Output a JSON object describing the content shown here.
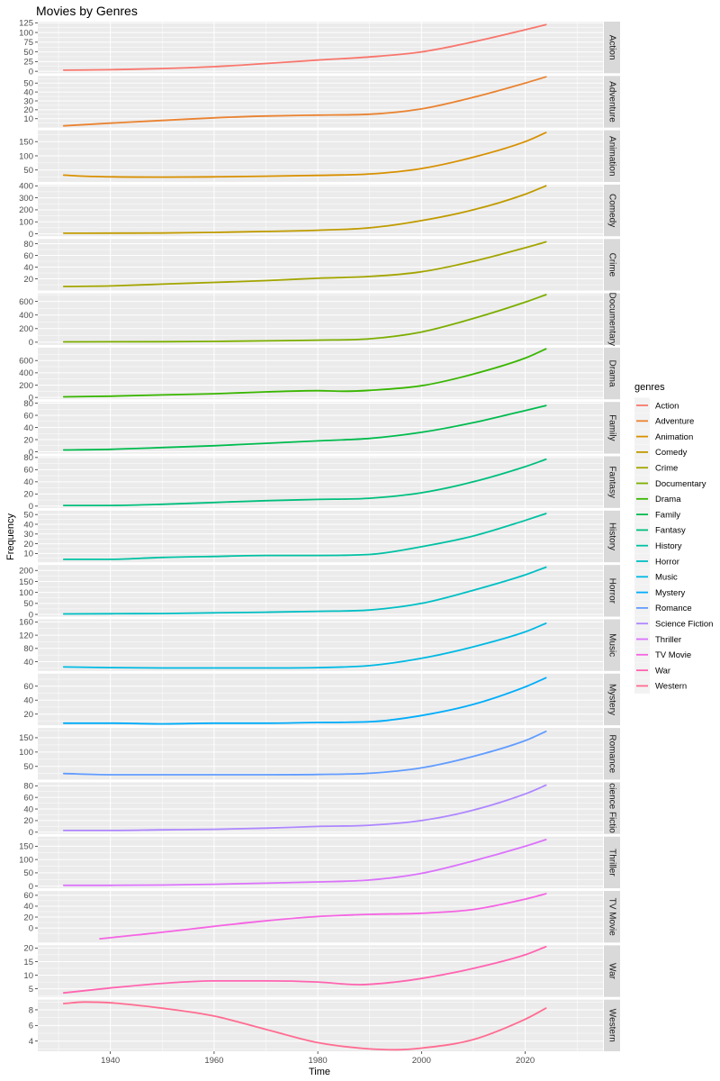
{
  "chart_data": {
    "type": "line",
    "title": "Movies by Genres",
    "xlabel": "Time",
    "ylabel": "Frequency",
    "legend_title": "genres",
    "legend_position": "right",
    "grid": true,
    "xlim": [
      1926,
      2035
    ],
    "x_ticks": [
      1940,
      1960,
      1980,
      2000,
      2020
    ],
    "facets": [
      {
        "name": "Action",
        "strip_label": "Action",
        "color": "#F8766D",
        "ylim": [
          -5,
          128
        ],
        "y_ticks": [
          0,
          25,
          50,
          75,
          100,
          125
        ],
        "x": [
          1931,
          1940,
          1950,
          1960,
          1970,
          1980,
          1990,
          2000,
          2010,
          2020,
          2024
        ],
        "y": [
          3,
          4,
          7,
          12,
          20,
          29,
          37,
          50,
          76,
          107,
          120
        ]
      },
      {
        "name": "Adventure",
        "strip_label": "Adventure",
        "color": "#EA8331",
        "ylim": [
          0,
          58
        ],
        "y_ticks": [
          10,
          20,
          30,
          40,
          50
        ],
        "x": [
          1931,
          1940,
          1950,
          1960,
          1970,
          1980,
          1990,
          2000,
          2010,
          2020,
          2024
        ],
        "y": [
          2,
          5,
          8,
          11,
          13,
          14,
          15,
          21,
          34,
          50,
          57
        ]
      },
      {
        "name": "Animation",
        "strip_label": "Animation",
        "color": "#D89000",
        "ylim": [
          8,
          190
        ],
        "y_ticks": [
          50,
          100,
          150
        ],
        "x": [
          1931,
          1935,
          1950,
          1960,
          1970,
          1980,
          1990,
          2000,
          2010,
          2020,
          2024
        ],
        "y": [
          32,
          28,
          25,
          26,
          28,
          31,
          36,
          55,
          95,
          150,
          182
        ]
      },
      {
        "name": "Comedy",
        "strip_label": "Comedy",
        "color": "#C09B00",
        "ylim": [
          -20,
          410
        ],
        "y_ticks": [
          0,
          100,
          200,
          300,
          400
        ],
        "x": [
          1931,
          1940,
          1950,
          1960,
          1970,
          1980,
          1990,
          2000,
          2010,
          2020,
          2024
        ],
        "y": [
          5,
          6,
          7,
          12,
          20,
          30,
          50,
          110,
          200,
          330,
          400
        ]
      },
      {
        "name": "Crime",
        "strip_label": "Crime",
        "color": "#A3A500",
        "ylim": [
          0,
          88
        ],
        "y_ticks": [
          20,
          40,
          60,
          80
        ],
        "x": [
          1931,
          1940,
          1950,
          1960,
          1970,
          1980,
          1990,
          2000,
          2010,
          2020,
          2024
        ],
        "y": [
          7,
          8,
          11,
          14,
          17,
          21,
          24,
          32,
          50,
          73,
          83
        ]
      },
      {
        "name": "Documentary",
        "strip_label": "Documentary",
        "color": "#7CAE00",
        "ylim": [
          -40,
          720
        ],
        "y_ticks": [
          0,
          200,
          400,
          600
        ],
        "x": [
          1931,
          1940,
          1950,
          1960,
          1970,
          1980,
          1990,
          2000,
          2010,
          2020,
          2024
        ],
        "y": [
          5,
          6,
          8,
          12,
          20,
          30,
          50,
          150,
          350,
          590,
          700
        ]
      },
      {
        "name": "Drama",
        "strip_label": "Drama",
        "color": "#39B600",
        "ylim": [
          -30,
          810
        ],
        "y_ticks": [
          0,
          200,
          400,
          600
        ],
        "x": [
          1931,
          1940,
          1950,
          1960,
          1970,
          1980,
          1985,
          1990,
          2000,
          2010,
          2020,
          2024
        ],
        "y": [
          10,
          20,
          40,
          60,
          90,
          110,
          100,
          115,
          190,
          380,
          640,
          790
        ]
      },
      {
        "name": "Family",
        "strip_label": "Family",
        "color": "#00BB4E",
        "ylim": [
          -3,
          82
        ],
        "y_ticks": [
          0,
          20,
          40,
          60,
          80
        ],
        "x": [
          1931,
          1940,
          1950,
          1960,
          1970,
          1980,
          1990,
          2000,
          2010,
          2020,
          2024
        ],
        "y": [
          3,
          4,
          7,
          10,
          14,
          18,
          22,
          32,
          48,
          68,
          76
        ]
      },
      {
        "name": "Fantasy",
        "strip_label": "Fantasy",
        "color": "#00BF7D",
        "ylim": [
          -3,
          82
        ],
        "y_ticks": [
          0,
          20,
          40,
          60,
          80
        ],
        "x": [
          1931,
          1940,
          1950,
          1960,
          1970,
          1980,
          1990,
          2000,
          2010,
          2020,
          2024
        ],
        "y": [
          1,
          1,
          3,
          6,
          9,
          11,
          13,
          22,
          40,
          65,
          77
        ]
      },
      {
        "name": "History",
        "strip_label": "History",
        "color": "#00C1A3",
        "ylim": [
          1,
          54
        ],
        "y_ticks": [
          10,
          20,
          30,
          40,
          50
        ],
        "x": [
          1931,
          1940,
          1950,
          1960,
          1970,
          1980,
          1990,
          2000,
          2010,
          2020,
          2024
        ],
        "y": [
          4,
          4,
          6,
          7,
          8,
          8,
          9,
          17,
          28,
          44,
          51
        ]
      },
      {
        "name": "Horror",
        "strip_label": "Horror",
        "color": "#00BFC4",
        "ylim": [
          -10,
          225
        ],
        "y_ticks": [
          0,
          50,
          100,
          150,
          200
        ],
        "x": [
          1931,
          1940,
          1950,
          1960,
          1970,
          1980,
          1990,
          2000,
          2010,
          2020,
          2024
        ],
        "y": [
          2,
          3,
          4,
          7,
          10,
          14,
          20,
          50,
          110,
          180,
          215
        ]
      },
      {
        "name": "Music",
        "strip_label": "Music",
        "color": "#00B9E3",
        "ylim": [
          12,
          168
        ],
        "y_ticks": [
          40,
          80,
          120,
          160
        ],
        "x": [
          1931,
          1940,
          1950,
          1960,
          1970,
          1980,
          1990,
          2000,
          2010,
          2020,
          2024
        ],
        "y": [
          24,
          22,
          21,
          21,
          21,
          22,
          28,
          50,
          85,
          130,
          156
        ]
      },
      {
        "name": "Mystery",
        "strip_label": "Mystery",
        "color": "#00ADFA",
        "ylim": [
          4,
          78
        ],
        "y_ticks": [
          20,
          40,
          60
        ],
        "x": [
          1931,
          1940,
          1950,
          1960,
          1970,
          1980,
          1990,
          2000,
          2010,
          2020,
          2024
        ],
        "y": [
          7,
          7,
          6,
          7,
          7,
          8,
          9,
          18,
          34,
          59,
          72
        ]
      },
      {
        "name": "Romance",
        "strip_label": "Romance",
        "color": "#619CFF",
        "ylim": [
          4,
          184
        ],
        "y_ticks": [
          50,
          100,
          150
        ],
        "x": [
          1931,
          1940,
          1950,
          1960,
          1970,
          1980,
          1990,
          2000,
          2010,
          2020,
          2024
        ],
        "y": [
          25,
          21,
          21,
          21,
          21,
          22,
          26,
          45,
          85,
          140,
          172
        ]
      },
      {
        "name": "Science Fiction",
        "strip_label": "cience Fictio",
        "color": "#AE87FF",
        "ylim": [
          -3,
          86
        ],
        "y_ticks": [
          0,
          20,
          40,
          60,
          80
        ],
        "x": [
          1931,
          1940,
          1950,
          1960,
          1970,
          1980,
          1990,
          2000,
          2010,
          2020,
          2024
        ],
        "y": [
          3,
          3,
          4,
          5,
          7,
          10,
          12,
          20,
          38,
          66,
          81
        ]
      },
      {
        "name": "Thriller",
        "strip_label": "Thriller",
        "color": "#DB72FB",
        "ylim": [
          -8,
          186
        ],
        "y_ticks": [
          0,
          50,
          100,
          150
        ],
        "x": [
          1931,
          1940,
          1950,
          1960,
          1970,
          1980,
          1990,
          2000,
          2010,
          2020,
          2024
        ],
        "y": [
          3,
          3,
          4,
          7,
          11,
          16,
          23,
          48,
          95,
          150,
          175
        ]
      },
      {
        "name": "TV Movie",
        "strip_label": "TV Movie",
        "color": "#F564E3",
        "ylim": [
          -27,
          68
        ],
        "y_ticks": [
          0,
          20,
          40,
          60
        ],
        "x": [
          1938,
          1945,
          1950,
          1960,
          1970,
          1980,
          1990,
          2000,
          2010,
          2020,
          2024
        ],
        "y": [
          -20,
          -13,
          -8,
          3,
          13,
          21,
          25,
          27,
          34,
          53,
          63
        ]
      },
      {
        "name": "War",
        "strip_label": "War",
        "color": "#FF64B0",
        "ylim": [
          2,
          21
        ],
        "y_ticks": [
          5,
          10,
          15,
          20
        ],
        "x": [
          1931,
          1940,
          1950,
          1960,
          1970,
          1980,
          1988,
          1995,
          2000,
          2010,
          2020,
          2024
        ],
        "y": [
          3.5,
          5.3,
          7,
          7.9,
          7.9,
          7.5,
          6.5,
          7.5,
          8.8,
          12.5,
          17.5,
          20.5
        ]
      },
      {
        "name": "Western",
        "strip_label": "Western",
        "color": "#FF6C91",
        "ylim": [
          2.7,
          9.3
        ],
        "y_ticks": [
          4,
          6,
          8
        ],
        "x": [
          1931,
          1935,
          1940,
          1950,
          1960,
          1970,
          1980,
          1990,
          1995,
          2000,
          2010,
          2020,
          2024
        ],
        "y": [
          8.8,
          9.0,
          8.9,
          8.2,
          7.2,
          5.5,
          3.8,
          3.0,
          2.9,
          3.1,
          4.2,
          6.8,
          8.2
        ]
      }
    ]
  }
}
